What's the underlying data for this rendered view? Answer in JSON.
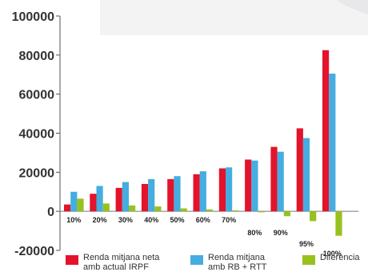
{
  "chart_data": {
    "type": "bar",
    "categories": [
      "10%",
      "20%",
      "30%",
      "40%",
      "50%",
      "60%",
      "70%",
      "80%",
      "90%",
      "95%",
      "100%"
    ],
    "series": [
      {
        "name": "Renda mitjana neta\namb actual IRPF",
        "color": "#e3132b",
        "values": [
          3500,
          9000,
          12000,
          14000,
          16500,
          19000,
          22000,
          26500,
          33000,
          42500,
          82500
        ]
      },
      {
        "name": "Renda mitjana\namb RB + RTT",
        "color": "#45ade0",
        "values": [
          10000,
          13000,
          15000,
          16500,
          18000,
          20500,
          22500,
          26000,
          30500,
          37500,
          70500
        ]
      },
      {
        "name": "Diferència",
        "color": "#97c21e",
        "values": [
          6500,
          4000,
          3000,
          2500,
          1500,
          1000,
          500,
          -500,
          -2500,
          -5000,
          -12500
        ]
      }
    ],
    "yticks": [
      "100000",
      "80000",
      "60000",
      "40000",
      "20000",
      "0",
      "-20000"
    ],
    "ylim": [
      -20000,
      100000
    ],
    "title": "",
    "xlabel": "",
    "ylabel": "",
    "legend_position": "bottom"
  }
}
